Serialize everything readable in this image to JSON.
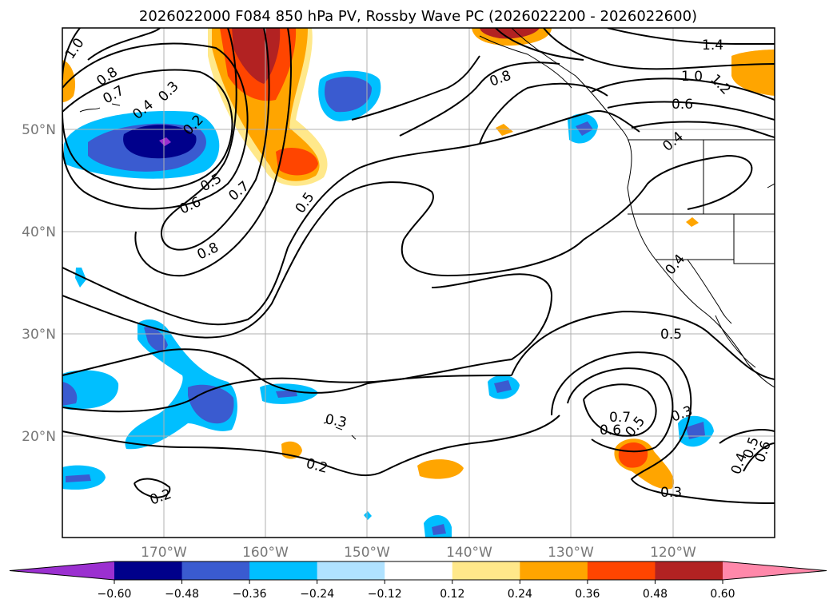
{
  "title": "2026022000 F084 850 hPa PV, Rossby Wave PC (2026022200 - 2026022600)",
  "latitude_labels": [
    "50°N",
    "40°N",
    "30°N",
    "20°N"
  ],
  "longitude_labels": [
    "170°W",
    "160°W",
    "150°W",
    "140°W",
    "130°W",
    "120°W"
  ],
  "colorbar": {
    "ticks": [
      "−0.60",
      "−0.48",
      "−0.36",
      "−0.24",
      "−0.12",
      "0.12",
      "0.24",
      "0.36",
      "0.48",
      "0.60"
    ],
    "colors": [
      "#9b30d0",
      "#00008b",
      "#3a5bd0",
      "#00bfff",
      "#b0e2ff",
      "#ffffff",
      "#ffe88a",
      "#ffa500",
      "#ff4500",
      "#b22222",
      "#ff88aa"
    ]
  },
  "pv_contour_labels": [
    "1.0",
    "0.8",
    "0.7",
    "0.3",
    "0.4",
    "0.2",
    "0.5",
    "0.6",
    "0.7",
    "0.8",
    "0.5",
    "0.8",
    "1.4",
    "1.0",
    "1.2",
    "0.6",
    "0.4",
    "0.4",
    "0.5",
    "0.3",
    "0.2",
    "0.2",
    "0.7",
    "0.6",
    "0.5",
    "0.3",
    "0.3",
    "0.4",
    "0.6",
    "0.5"
  ]
}
